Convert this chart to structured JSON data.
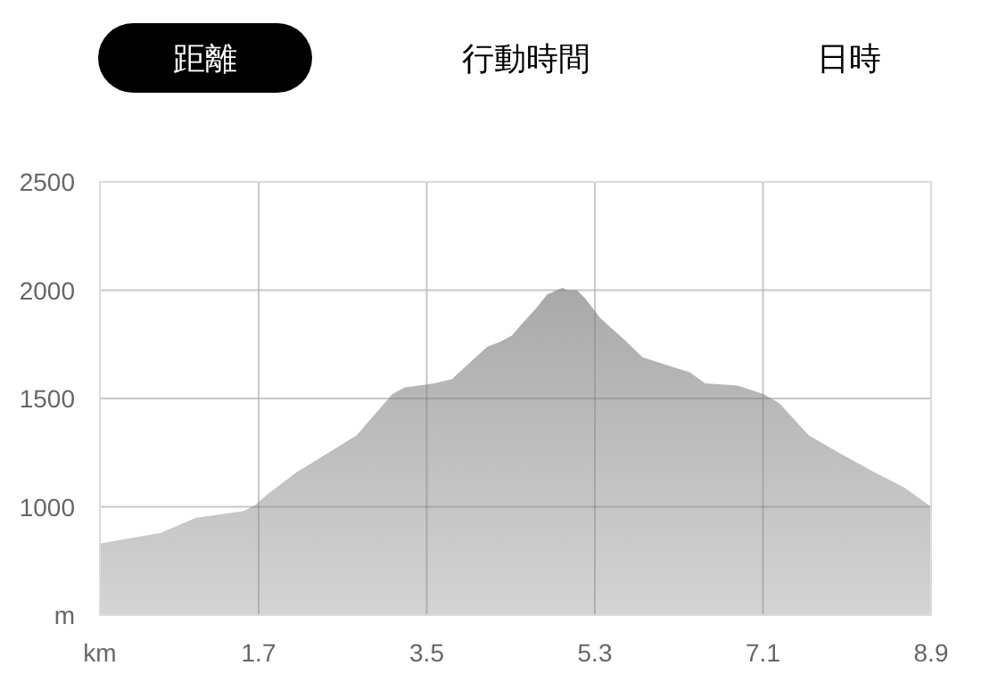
{
  "chart_data": {
    "type": "area",
    "annotations": [
      "距離",
      "行動時間",
      "日時"
    ],
    "x": [
      0,
      0.65,
      1.03,
      1.54,
      1.67,
      1.8,
      2.11,
      2.75,
      3.13,
      3.26,
      3.58,
      3.77,
      4.15,
      4.28,
      4.41,
      4.53,
      4.66,
      4.79,
      4.95,
      5.01,
      5.11,
      5.2,
      5.36,
      5.62,
      5.81,
      6.32,
      6.48,
      6.83,
      7.11,
      7.27,
      7.59,
      7.91,
      8.29,
      8.61,
      8.9
    ],
    "series": [
      {
        "color": "#a9a9a9",
        "values": [
          830,
          880,
          950,
          980,
          1010,
          1060,
          1160,
          1330,
          1520,
          1550,
          1570,
          1590,
          1740,
          1760,
          1790,
          1850,
          1910,
          1980,
          2010,
          2000,
          2000,
          1960,
          1870,
          1770,
          1690,
          1620,
          1570,
          1560,
          1520,
          1480,
          1330,
          1250,
          1160,
          1090,
          1000
        ]
      }
    ],
    "xlim": [
      0,
      8.9
    ],
    "xticks": [
      {
        "value": 0,
        "label": "km"
      },
      1.7,
      3.5,
      5.3,
      7.1,
      8.9
    ],
    "ylim": [
      500,
      2500
    ],
    "yticks": [
      {
        "value": 500,
        "label": "m"
      },
      1000,
      1500,
      2000,
      2500
    ],
    "grid": true
  }
}
